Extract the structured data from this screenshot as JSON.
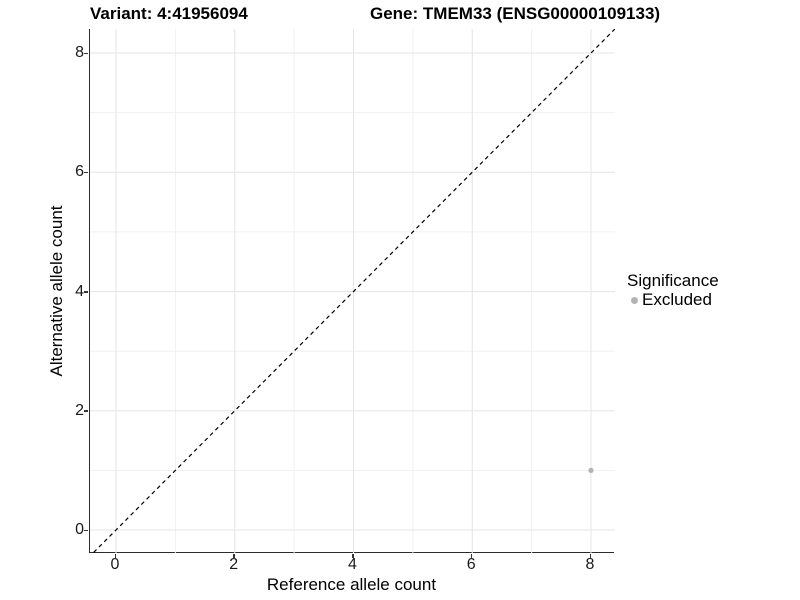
{
  "titles": {
    "variant": "Variant: 4:41956094",
    "gene": "Gene: TMEM33 (ENSG00000109133)"
  },
  "chart_data": {
    "type": "scatter",
    "xlabel": "Reference allele count",
    "ylabel": "Alternative allele count",
    "xlim": [
      -0.44,
      8.4
    ],
    "ylim": [
      -0.39,
      8.4
    ],
    "xticks": [
      0,
      2,
      4,
      6,
      8
    ],
    "yticks": [
      0,
      2,
      4,
      6,
      8
    ],
    "xticks_minor": [
      1,
      3,
      5,
      7
    ],
    "yticks_minor": [
      1,
      3,
      5,
      7
    ],
    "grid": "major+minor",
    "points": [
      {
        "x": 8,
        "y": 1,
        "series": "Excluded"
      }
    ],
    "reference_line": {
      "type": "identity",
      "slope": 1,
      "intercept": 0,
      "style": "dashed",
      "color": "#000000"
    },
    "legend": {
      "title": "Significance",
      "position": "right",
      "entries": [
        {
          "label": "Excluded",
          "color": "#b3b3b3"
        }
      ]
    }
  },
  "colors": {
    "background": "#ffffff",
    "point": "#b3b3b3",
    "grid_major": "#e6e6e6",
    "grid_minor": "#f1f1f1",
    "axis": "#2b2b2b",
    "tick": "#333333",
    "text": "#000000"
  }
}
